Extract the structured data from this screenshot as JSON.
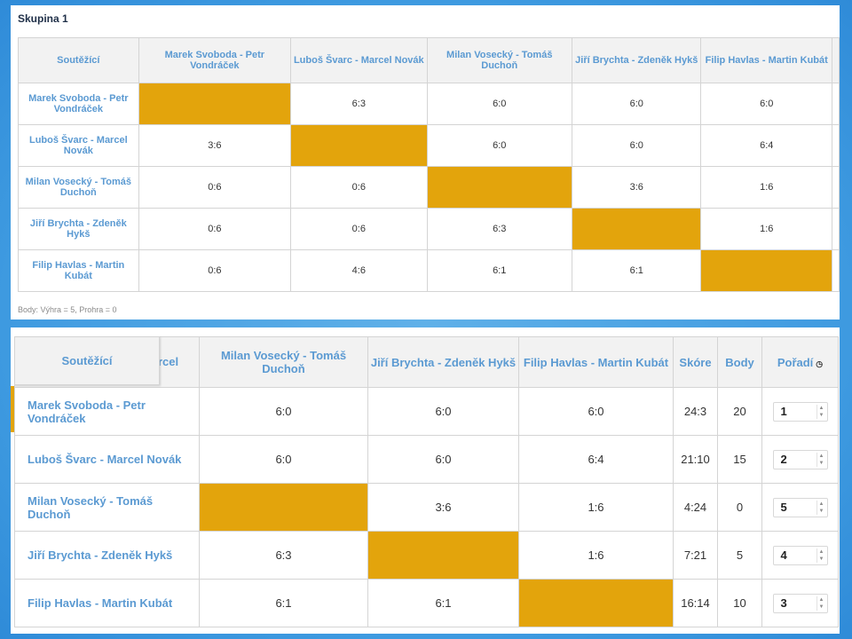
{
  "group_title": "Skupina 1",
  "points_note": "Body: Výhra = 5, Prohra = 0",
  "columns": {
    "competitor": "Soutěžící",
    "score": "Skóre",
    "points": "Body",
    "rank": "Pořadí"
  },
  "teams": [
    "Marek Svoboda - Petr Vondráček",
    "Luboš Švarc - Marcel Novák",
    "Milan Vosecký - Tomáš Duchoň",
    "Jiří Brychta - Zdeněk Hykš",
    "Filip Havlas - Martin Kubát"
  ],
  "results": [
    [
      "",
      "6:3",
      "6:0",
      "6:0",
      "6:0"
    ],
    [
      "3:6",
      "",
      "6:0",
      "6:0",
      "6:4"
    ],
    [
      "0:6",
      "0:6",
      "",
      "3:6",
      "1:6"
    ],
    [
      "0:6",
      "0:6",
      "6:3",
      "",
      "1:6"
    ],
    [
      "0:6",
      "4:6",
      "6:1",
      "6:1",
      ""
    ]
  ],
  "totals": [
    {
      "score": "24:3",
      "points": "20",
      "rank": "1"
    },
    {
      "score": "21:10",
      "points": "15",
      "rank": "2"
    },
    {
      "score": "4:24",
      "points": "0",
      "rank": "5"
    },
    {
      "score": "7:21",
      "points": "5",
      "rank": "4"
    },
    {
      "score": "16:14",
      "points": "10",
      "rank": "3"
    }
  ],
  "clipped_header_fragment": "rcel",
  "icons": {
    "sort": "clock-sort-icon",
    "spinner": "spinner-arrows-icon"
  },
  "colors": {
    "filled_cell": "#e3a40c",
    "header_text": "#5b9ad2",
    "background": "#3e9ae0"
  }
}
